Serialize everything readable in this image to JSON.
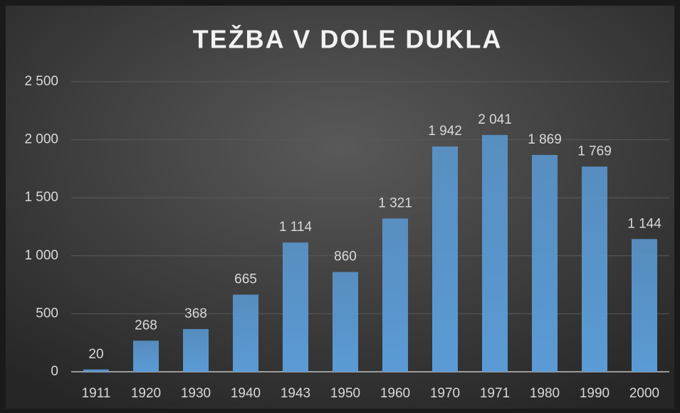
{
  "chart_data": {
    "type": "bar",
    "title": "TEŽBA V DOLE DUKLA",
    "categories": [
      "1911",
      "1920",
      "1930",
      "1940",
      "1943",
      "1950",
      "1960",
      "1970",
      "1971",
      "1980",
      "1990",
      "2000"
    ],
    "values": [
      20,
      268,
      368,
      665,
      1114,
      860,
      1321,
      1942,
      2041,
      1869,
      1769,
      1144
    ],
    "value_labels": [
      "20",
      "268",
      "368",
      "665",
      "1 114",
      "860",
      "1 321",
      "1 942",
      "2 041",
      "1 869",
      "1 769",
      "1 144"
    ],
    "color": "#5b9bd5",
    "ylim": [
      0,
      2500
    ],
    "yticks": [
      0,
      500,
      {
        "value": 1000,
        "label": "1 000"
      },
      {
        "value": 1500,
        "label": "1 500"
      },
      {
        "value": 2000,
        "label": "2 000"
      },
      {
        "value": 2500,
        "label": "2 500"
      }
    ],
    "grid": true
  }
}
